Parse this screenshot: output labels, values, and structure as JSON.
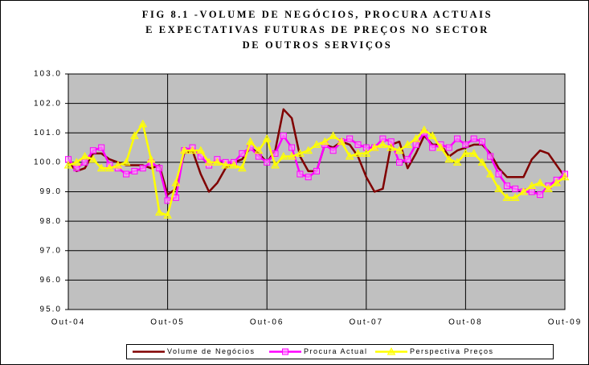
{
  "chart_data": {
    "type": "line",
    "title": [
      "FIG 8.1 -VOLUME DE NEGÓCIOS, PROCURA ACTUAIS",
      "E EXPECTATIVAS FUTURAS DE PREÇOS NO SECTOR",
      "DE OUTROS SERVIÇOS"
    ],
    "categories": [
      "Out-04",
      null,
      null,
      null,
      null,
      null,
      null,
      null,
      null,
      null,
      null,
      null,
      "Out-05",
      null,
      null,
      null,
      null,
      null,
      null,
      null,
      null,
      null,
      null,
      null,
      "Out-06",
      null,
      null,
      null,
      null,
      null,
      null,
      null,
      null,
      null,
      null,
      null,
      "Out-07",
      null,
      null,
      null,
      null,
      null,
      null,
      null,
      null,
      null,
      null,
      null,
      "Out-08",
      null,
      null,
      null,
      null,
      null,
      null,
      null,
      null,
      null,
      null,
      null,
      "Out-09"
    ],
    "series": [
      {
        "name": "Volume de Negócios",
        "color": "#800000",
        "marker": "none",
        "values": [
          100.0,
          99.7,
          99.8,
          100.3,
          100.3,
          100.1,
          100.0,
          99.9,
          99.9,
          99.9,
          99.8,
          99.9,
          98.9,
          99.1,
          100.3,
          100.4,
          99.6,
          99.0,
          99.3,
          99.8,
          100.0,
          100.1,
          100.5,
          100.3,
          100.0,
          100.4,
          101.8,
          101.5,
          100.2,
          99.7,
          99.7,
          100.6,
          100.5,
          100.7,
          100.6,
          100.2,
          99.5,
          99.0,
          99.1,
          100.6,
          100.7,
          99.8,
          100.3,
          100.9,
          100.6,
          100.6,
          100.2,
          100.4,
          100.5,
          100.6,
          100.6,
          100.3,
          99.8,
          99.5,
          99.5,
          99.5,
          100.1,
          100.4,
          100.3,
          99.9,
          99.5
        ]
      },
      {
        "name": "Procura Actual",
        "color": "#ff00ff",
        "marker": "square",
        "values": [
          100.1,
          99.8,
          100.0,
          100.4,
          100.5,
          99.9,
          99.8,
          99.6,
          99.7,
          99.8,
          100.0,
          99.8,
          98.7,
          98.8,
          100.4,
          100.5,
          100.2,
          99.9,
          100.1,
          100.0,
          100.0,
          100.3,
          100.5,
          100.2,
          100.0,
          100.3,
          100.9,
          100.5,
          99.6,
          99.5,
          99.7,
          100.6,
          100.4,
          100.7,
          100.8,
          100.6,
          100.5,
          100.5,
          100.8,
          100.7,
          100.0,
          100.1,
          100.6,
          101.0,
          100.5,
          100.6,
          100.5,
          100.8,
          100.6,
          100.8,
          100.7,
          100.2,
          99.6,
          99.2,
          99.1,
          99.0,
          99.0,
          98.9,
          99.2,
          99.4,
          99.6
        ]
      },
      {
        "name": "Perspectiva Preços",
        "color": "#ffff00",
        "marker": "triangle",
        "values": [
          99.9,
          100.0,
          100.2,
          100.1,
          99.8,
          99.8,
          99.9,
          100.0,
          100.9,
          101.3,
          100.1,
          98.3,
          98.2,
          99.3,
          100.4,
          100.4,
          100.4,
          100.0,
          100.0,
          99.9,
          99.9,
          99.8,
          100.7,
          100.4,
          100.8,
          99.9,
          100.2,
          100.2,
          100.3,
          100.4,
          100.6,
          100.7,
          100.9,
          100.7,
          100.2,
          100.3,
          100.3,
          100.5,
          100.6,
          100.5,
          100.4,
          100.6,
          100.8,
          101.1,
          100.9,
          100.5,
          100.1,
          100.0,
          100.3,
          100.3,
          100.0,
          99.6,
          99.1,
          98.8,
          98.8,
          99.0,
          99.2,
          99.3,
          99.1,
          99.3,
          99.5
        ]
      }
    ],
    "ylim": [
      95,
      103
    ],
    "yticks": [
      {
        "value": 95,
        "label": "95.0"
      },
      {
        "value": 96,
        "label": "96.0"
      },
      {
        "value": 97,
        "label": "97.0"
      },
      {
        "value": 98,
        "label": "98.0"
      },
      {
        "value": 99,
        "label": "99.0"
      },
      {
        "value": 100,
        "label": "100.0"
      },
      {
        "value": 101,
        "label": "101.0"
      },
      {
        "value": 102,
        "label": "102.0"
      },
      {
        "value": 103,
        "label": "103.0"
      }
    ],
    "grid": true,
    "legend": "bottom",
    "plot_background": "#c0c0c0"
  }
}
